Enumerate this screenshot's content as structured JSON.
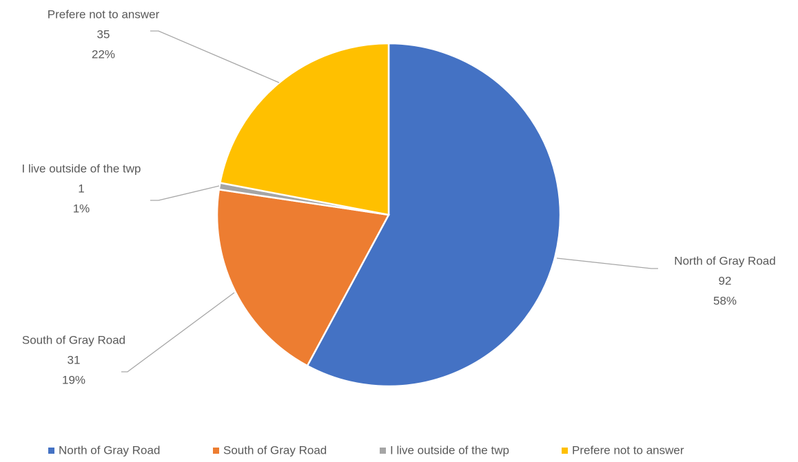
{
  "chart_data": {
    "type": "pie",
    "categories": [
      "North of Gray Road",
      "South of Gray Road",
      "I live outside of the twp",
      "Prefere not to answer"
    ],
    "values": [
      92,
      31,
      1,
      35
    ],
    "percent_labels": [
      "58%",
      "19%",
      "1%",
      "22%"
    ],
    "colors": [
      "#4472c4",
      "#ed7d31",
      "#a5a5a5",
      "#ffc000"
    ],
    "legend": "bottom"
  }
}
